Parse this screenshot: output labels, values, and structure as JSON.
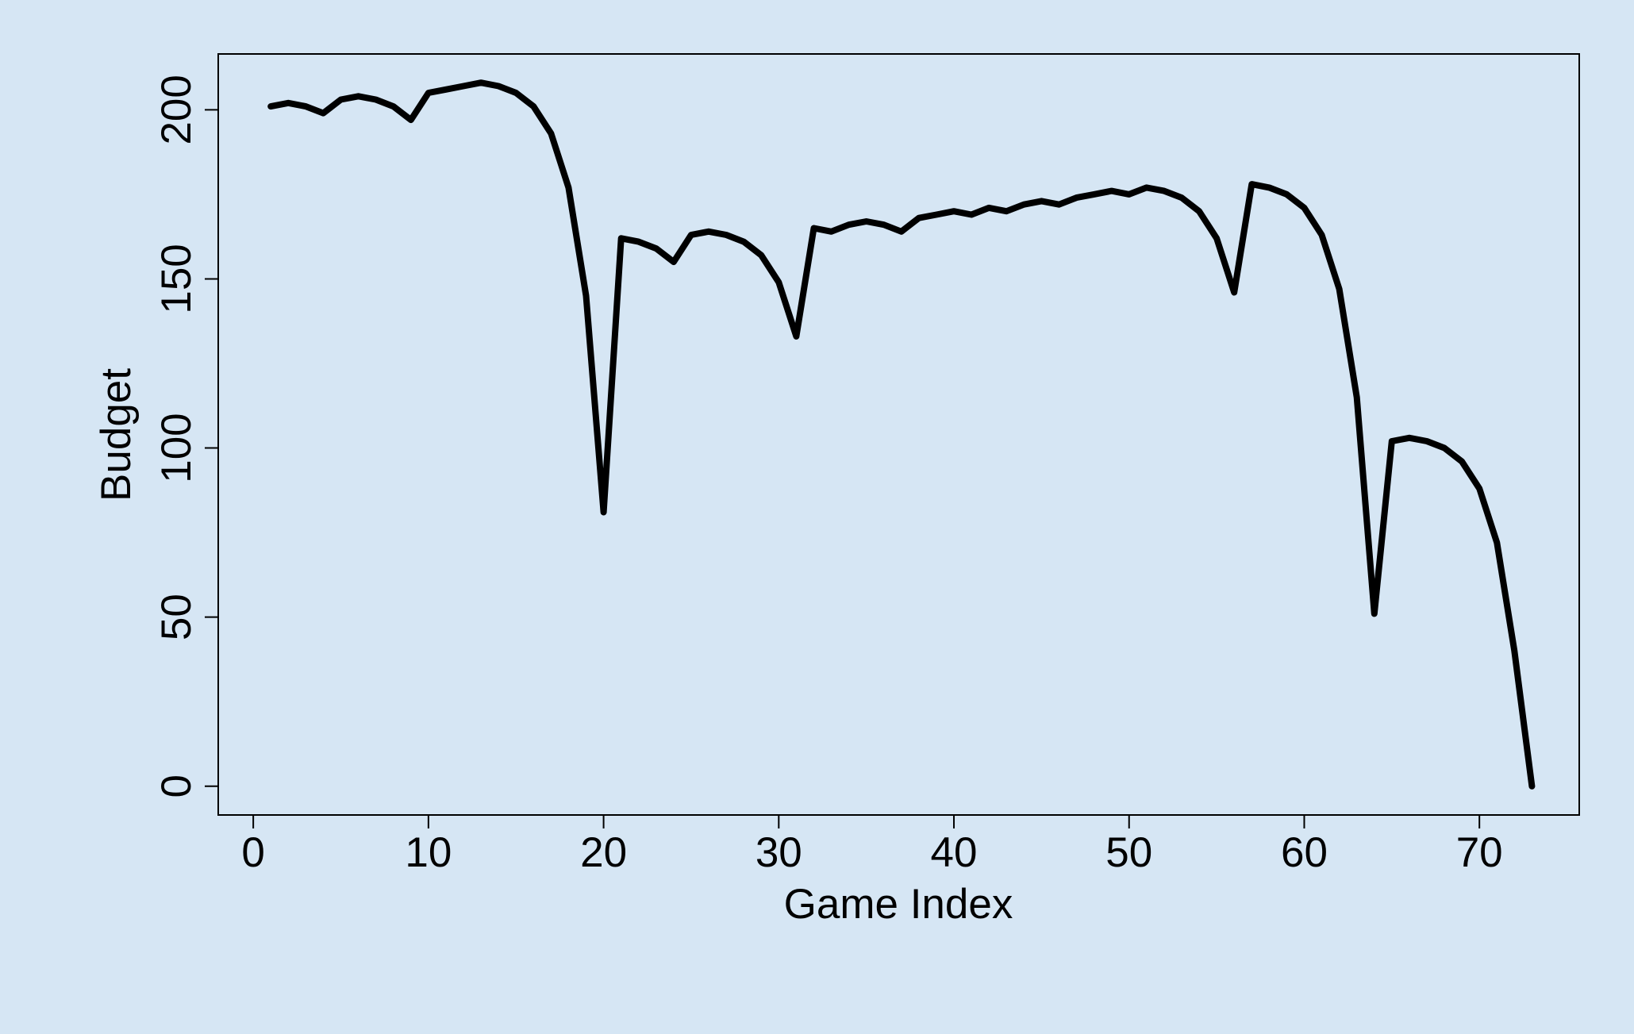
{
  "chart_data": {
    "type": "line",
    "title": "",
    "xlabel": "Game Index",
    "ylabel": "Budget",
    "xlim": [
      -2,
      75.7
    ],
    "ylim": [
      -8.5,
      216.5
    ],
    "xticks": [
      0,
      10,
      20,
      30,
      40,
      50,
      60,
      70
    ],
    "yticks": [
      0,
      50,
      100,
      150,
      200
    ],
    "grid": false,
    "legend": "none",
    "line_color": "#000000",
    "background_color": "#d6e6f4",
    "series": [
      {
        "x": [
          1,
          2,
          3,
          4,
          5,
          6,
          7,
          8,
          9,
          10,
          11,
          12,
          13,
          14,
          15,
          16,
          17,
          18,
          19,
          20,
          21,
          22,
          23,
          24,
          25,
          26,
          27,
          28,
          29,
          30,
          31,
          32,
          33,
          34,
          35,
          36,
          37,
          38,
          39,
          40,
          41,
          42,
          43,
          44,
          45,
          46,
          47,
          48,
          49,
          50,
          51,
          52,
          53,
          54,
          55,
          56,
          57,
          58,
          59,
          60,
          61,
          62,
          63,
          64,
          65,
          66,
          67,
          68,
          69,
          70,
          71,
          72,
          73
        ],
        "values": [
          201,
          202,
          201,
          199,
          203,
          204,
          203,
          201,
          197,
          205,
          206,
          207,
          208,
          207,
          205,
          201,
          193,
          177,
          145,
          81,
          162,
          161,
          159,
          155,
          163,
          164,
          163,
          161,
          157,
          149,
          133,
          165,
          164,
          166,
          167,
          166,
          164,
          168,
          169,
          170,
          169,
          171,
          170,
          172,
          173,
          172,
          174,
          175,
          176,
          175,
          177,
          176,
          174,
          170,
          162,
          146,
          178,
          177,
          175,
          171,
          163,
          147,
          115,
          51,
          102,
          103,
          102,
          100,
          96,
          88,
          72,
          40,
          0
        ]
      }
    ]
  }
}
